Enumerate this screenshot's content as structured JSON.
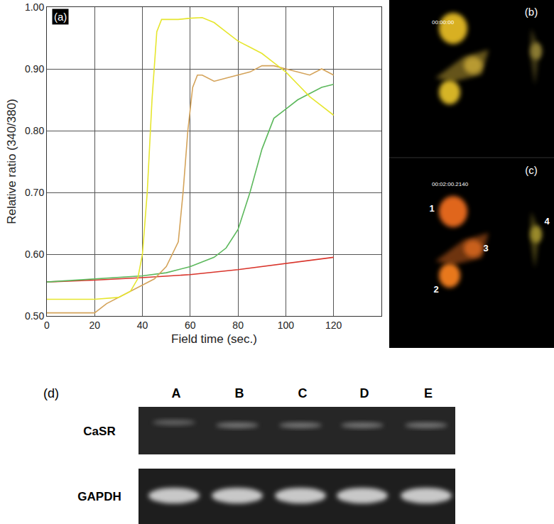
{
  "chart_data": {
    "type": "line",
    "label": "(a)",
    "x_label": "Field time (sec.)",
    "y_label": "Relative ratio (340/380)",
    "xlim": [
      0,
      140
    ],
    "xticks": [
      0,
      20,
      40,
      60,
      80,
      100,
      120
    ],
    "ylim": [
      0.5,
      1.0
    ],
    "yticks": [
      {
        "value": 0.5,
        "label": "0.50"
      },
      {
        "value": 0.6,
        "label": "0.60"
      },
      {
        "value": 0.7,
        "label": "0.70"
      },
      {
        "value": 0.8,
        "label": "0.80"
      },
      {
        "value": 0.9,
        "label": "0.90"
      },
      {
        "value": 1.0,
        "label": "1.00"
      }
    ],
    "grid": true,
    "series": [
      {
        "color": "#d9342b",
        "x": [
          0,
          20,
          40,
          60,
          80,
          100,
          120
        ],
        "values": [
          0.555,
          0.558,
          0.562,
          0.567,
          0.575,
          0.585,
          0.595
        ]
      },
      {
        "color": "#5cb85c",
        "x": [
          0,
          20,
          40,
          50,
          60,
          70,
          75,
          80,
          85,
          90,
          95,
          100,
          105,
          110,
          115,
          120
        ],
        "values": [
          0.555,
          0.56,
          0.565,
          0.57,
          0.58,
          0.595,
          0.61,
          0.64,
          0.7,
          0.77,
          0.82,
          0.835,
          0.85,
          0.86,
          0.87,
          0.875
        ]
      },
      {
        "color": "#d4a35a",
        "x": [
          0,
          10,
          20,
          25,
          30,
          40,
          45,
          50,
          55,
          57,
          59,
          61,
          63,
          65,
          70,
          75,
          80,
          85,
          90,
          95,
          100,
          105,
          110,
          115,
          120
        ],
        "values": [
          0.505,
          0.505,
          0.505,
          0.52,
          0.53,
          0.55,
          0.56,
          0.58,
          0.62,
          0.7,
          0.8,
          0.87,
          0.89,
          0.89,
          0.88,
          0.885,
          0.89,
          0.895,
          0.905,
          0.905,
          0.9,
          0.895,
          0.89,
          0.9,
          0.89
        ]
      },
      {
        "color": "#e6e62e",
        "x": [
          0,
          20,
          30,
          35,
          38,
          40,
          42,
          44,
          46,
          48,
          55,
          60,
          65,
          70,
          75,
          80,
          85,
          90,
          95,
          100,
          105,
          110,
          115,
          120
        ],
        "values": [
          0.527,
          0.527,
          0.53,
          0.54,
          0.56,
          0.6,
          0.7,
          0.85,
          0.96,
          0.98,
          0.98,
          0.982,
          0.983,
          0.975,
          0.96,
          0.945,
          0.935,
          0.925,
          0.91,
          0.895,
          0.875,
          0.855,
          0.84,
          0.825
        ]
      }
    ]
  },
  "panel_b": {
    "label": "(b)",
    "timestamp": "00:00:00"
  },
  "panel_c": {
    "label": "(c)",
    "timestamp": "00:02:00.2140",
    "cells": [
      "1",
      "2",
      "3",
      "4"
    ]
  },
  "panel_d": {
    "label": "(d)",
    "lanes": [
      "A",
      "B",
      "C",
      "D",
      "E"
    ],
    "rows": [
      "CaSR",
      "GAPDH"
    ]
  }
}
